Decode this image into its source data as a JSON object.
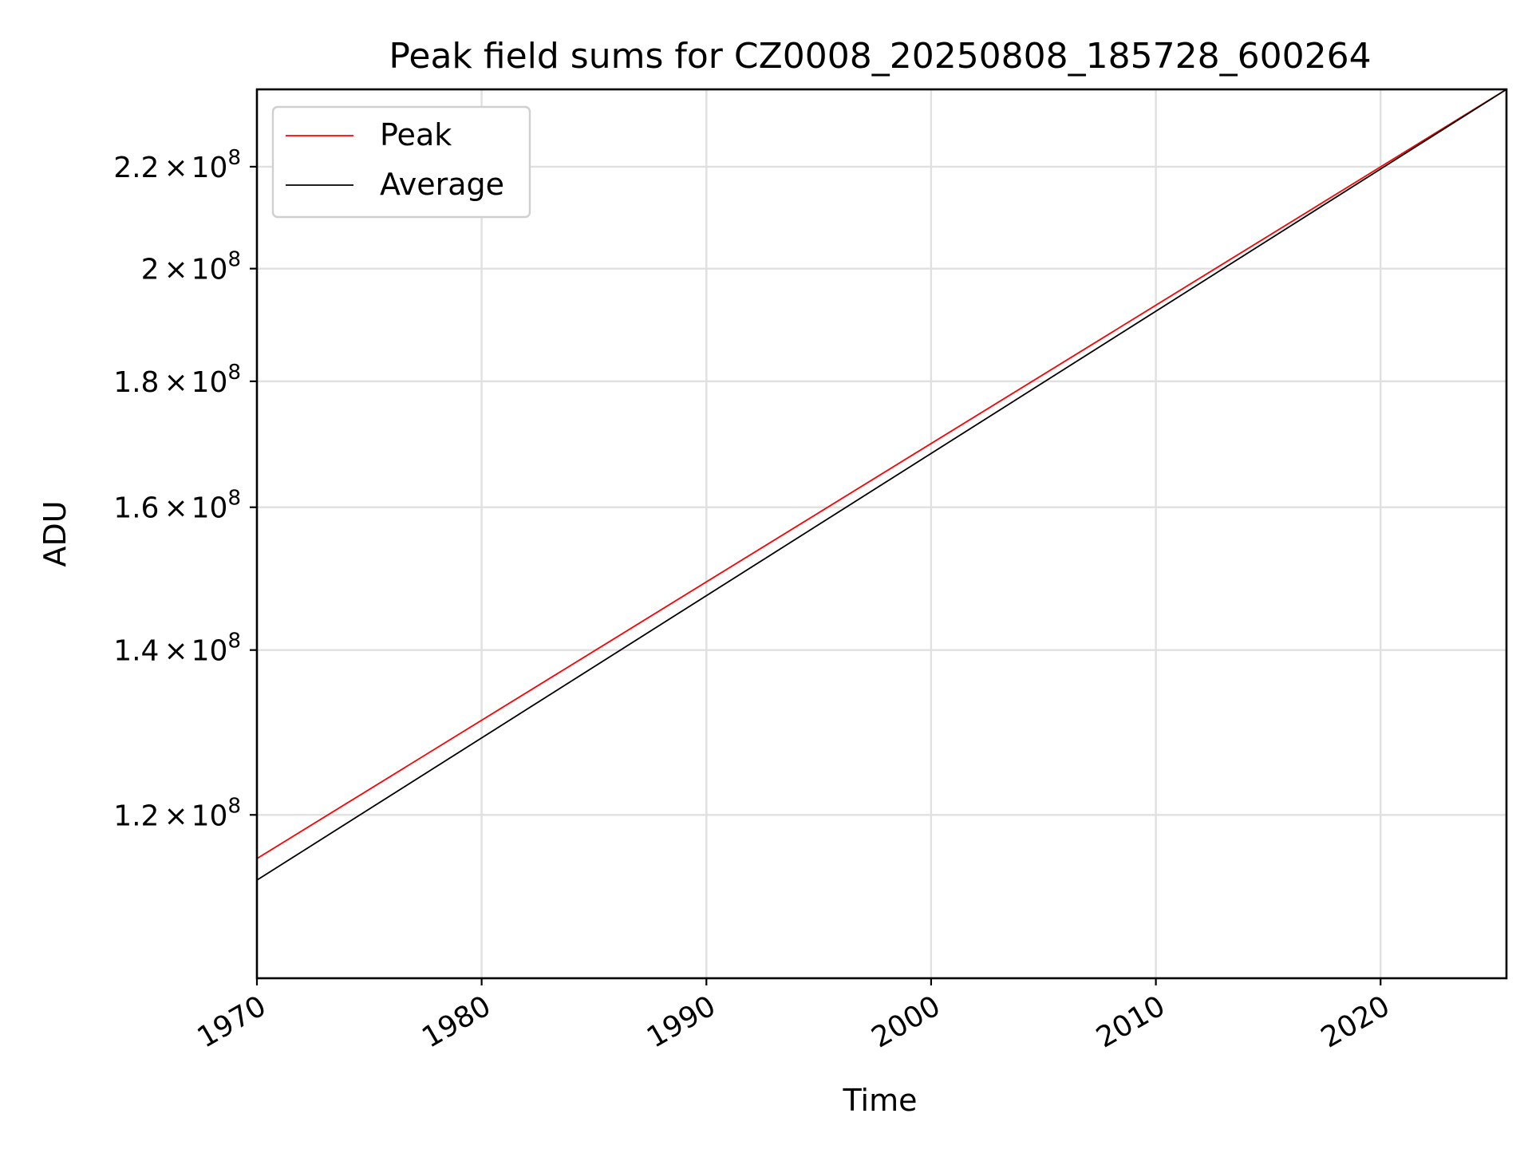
{
  "chart_data": {
    "type": "line",
    "title": "Peak field sums for CZ0008_20250808_185728_600264",
    "xlabel": "Time",
    "ylabel": "ADU",
    "x_type": "date",
    "xlim": [
      "1970-01-01",
      "2025-08-08"
    ],
    "ylim": [
      103000000,
      236500000
    ],
    "y_scale": "log",
    "grid": true,
    "legend_position": "upper-left",
    "x_ticks": [
      {
        "value": "1970-01-01",
        "label": "1970"
      },
      {
        "value": "1980-01-01",
        "label": "1980"
      },
      {
        "value": "1990-01-01",
        "label": "1990"
      },
      {
        "value": "2000-01-01",
        "label": "2000"
      },
      {
        "value": "2010-01-01",
        "label": "2010"
      },
      {
        "value": "2020-01-01",
        "label": "2020"
      }
    ],
    "y_ticks": [
      {
        "value": 120000000,
        "mantissa": "1.2",
        "times": "×",
        "base": "10",
        "exp": "8"
      },
      {
        "value": 140000000,
        "mantissa": "1.4",
        "times": "×",
        "base": "10",
        "exp": "8"
      },
      {
        "value": 160000000,
        "mantissa": "1.6",
        "times": "×",
        "base": "10",
        "exp": "8"
      },
      {
        "value": 180000000,
        "mantissa": "1.8",
        "times": "×",
        "base": "10",
        "exp": "8"
      },
      {
        "value": 200000000,
        "mantissa": "2",
        "times": "×",
        "base": "10",
        "exp": "8"
      },
      {
        "value": 220000000,
        "mantissa": "2.2",
        "times": "×",
        "base": "10",
        "exp": "8"
      }
    ],
    "series": [
      {
        "name": "Peak",
        "color": "#ff0000",
        "points": [
          {
            "x": "1970-01-01",
            "y": 115200000
          },
          {
            "x": "2025-08-08",
            "y": 236500000
          }
        ]
      },
      {
        "name": "Average",
        "color": "#000000",
        "points": [
          {
            "x": "1970-01-01",
            "y": 112900000
          },
          {
            "x": "2025-08-08",
            "y": 236500000
          }
        ]
      }
    ]
  }
}
